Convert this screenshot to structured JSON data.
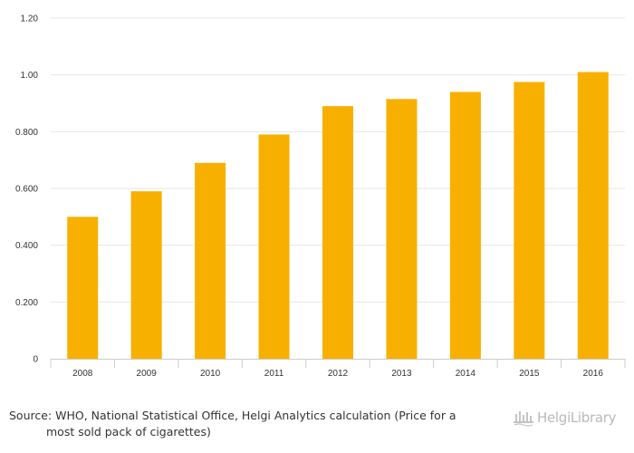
{
  "chart_data": {
    "type": "bar",
    "categories": [
      "2008",
      "2009",
      "2010",
      "2011",
      "2012",
      "2013",
      "2014",
      "2015",
      "2016"
    ],
    "series": [
      {
        "values": [
          0.5,
          0.59,
          0.69,
          0.79,
          0.89,
          0.915,
          0.94,
          0.975,
          1.01
        ]
      }
    ],
    "y_ticks": [
      "0",
      "0.200",
      "0.400",
      "0.600",
      "0.800",
      "1.00",
      "1.20"
    ],
    "ylim": [
      0,
      1.2
    ],
    "bar_color": "#f8b000",
    "grid": true,
    "legend": "none"
  },
  "source": {
    "line1": "Source: WHO, National Statistical Office, Helgi Analytics calculation (Price for a",
    "line2": "most sold pack of cigarettes)"
  },
  "logo": {
    "text": "HelgiLibrary",
    "icon": "helgi-logo-icon"
  }
}
